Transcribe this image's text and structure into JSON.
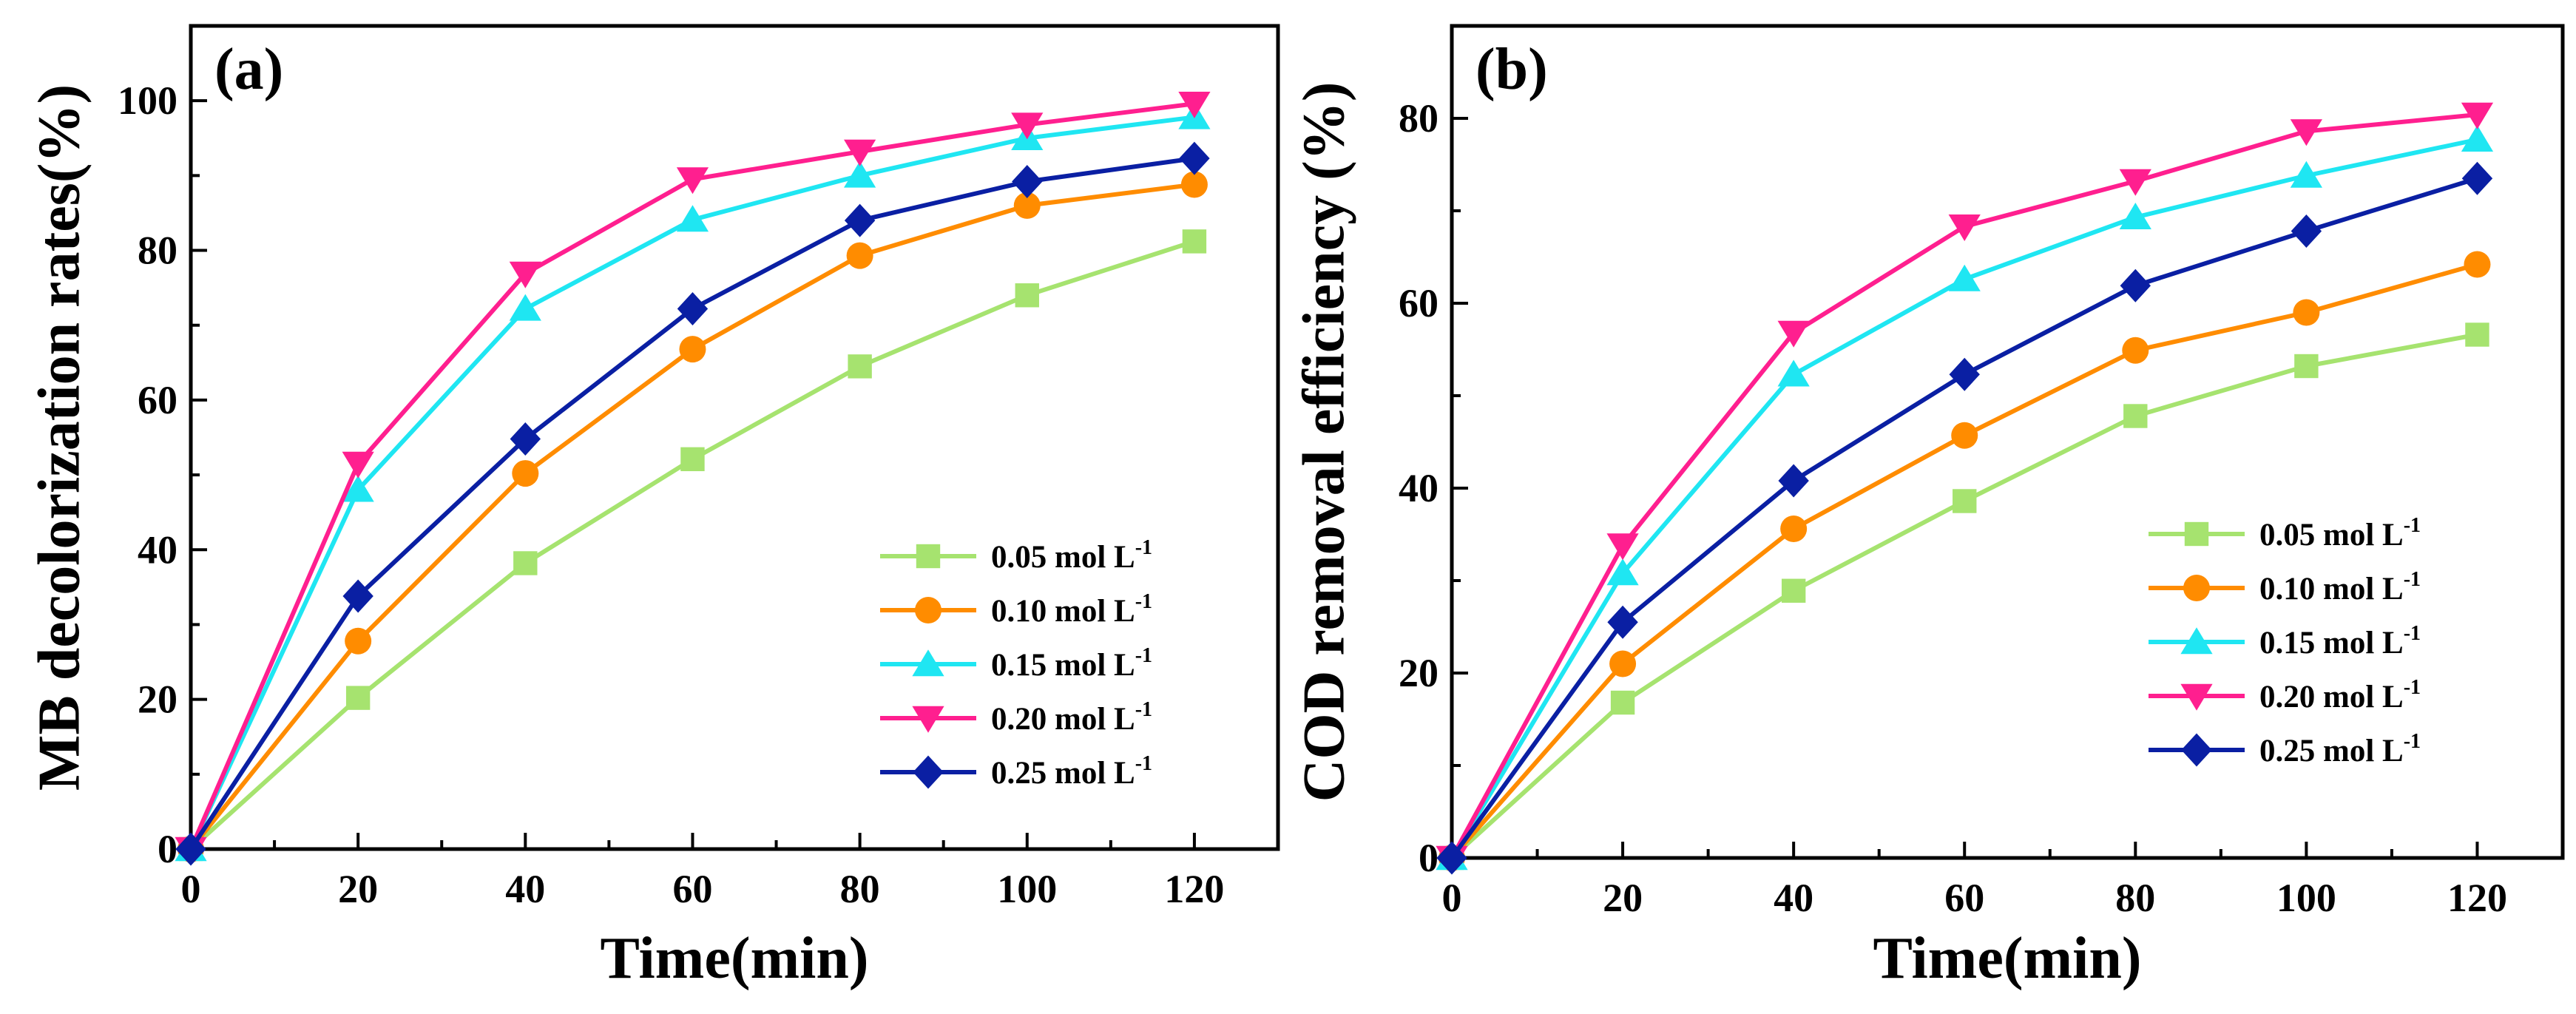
{
  "chart_data": [
    {
      "type": "line",
      "panel_label": "(a)",
      "xlabel": "Time(min)",
      "ylabel": "MB decolorization rates(%)",
      "xlim": [
        0,
        130
      ],
      "ylim": [
        0,
        110
      ],
      "x_ticks": [
        0,
        20,
        40,
        60,
        80,
        100,
        120
      ],
      "y_ticks": [
        0,
        20,
        40,
        60,
        80,
        100
      ],
      "x": [
        0,
        20,
        40,
        60,
        80,
        100,
        120
      ],
      "legend_position": "bottom-right",
      "series": [
        {
          "name": "0.05 mol L",
          "sup": "-1",
          "color": "#a6e36f",
          "marker": "square",
          "values": [
            0,
            20.2,
            38.2,
            52.1,
            64.5,
            74.0,
            81.2
          ]
        },
        {
          "name": "0.10 mol L",
          "sup": "-1",
          "color": "#ff8c00",
          "marker": "circle",
          "values": [
            0,
            27.8,
            50.2,
            66.8,
            79.3,
            86.0,
            88.8
          ]
        },
        {
          "name": "0.15 mol L",
          "sup": "-1",
          "color": "#1fe6f2",
          "marker": "triangle-up",
          "values": [
            0,
            48.0,
            72.2,
            84.1,
            90.0,
            95.0,
            97.8
          ]
        },
        {
          "name": "0.20 mol L",
          "sup": "-1",
          "color": "#ff1f8f",
          "marker": "triangle-down",
          "values": [
            0,
            51.5,
            76.9,
            89.5,
            93.2,
            96.8,
            99.6
          ]
        },
        {
          "name": "0.25 mol L",
          "sup": "-1",
          "color": "#0a1fa3",
          "marker": "diamond",
          "values": [
            0,
            33.8,
            54.8,
            72.2,
            84.0,
            89.2,
            92.3
          ]
        }
      ]
    },
    {
      "type": "line",
      "panel_label": "(b)",
      "xlabel": "Time(min)",
      "ylabel": "COD removal efficiency (%)",
      "xlim": [
        0,
        130
      ],
      "ylim": [
        0,
        90
      ],
      "x_ticks": [
        0,
        20,
        40,
        60,
        80,
        100,
        120
      ],
      "y_ticks": [
        0,
        20,
        40,
        60,
        80
      ],
      "x": [
        0,
        20,
        40,
        60,
        80,
        100,
        120
      ],
      "legend_position": "bottom-right",
      "series": [
        {
          "name": "0.05 mol L",
          "sup": "-1",
          "color": "#a6e36f",
          "marker": "square",
          "values": [
            0,
            16.8,
            28.9,
            38.6,
            47.8,
            53.2,
            56.6
          ]
        },
        {
          "name": "0.10 mol L",
          "sup": "-1",
          "color": "#ff8c00",
          "marker": "circle",
          "values": [
            0,
            21.0,
            35.6,
            45.7,
            54.9,
            59.0,
            64.2
          ]
        },
        {
          "name": "0.15 mol L",
          "sup": "-1",
          "color": "#1fe6f2",
          "marker": "triangle-up",
          "values": [
            0,
            30.8,
            52.3,
            62.6,
            69.3,
            73.8,
            77.7
          ]
        },
        {
          "name": "0.20 mol L",
          "sup": "-1",
          "color": "#ff1f8f",
          "marker": "triangle-down",
          "values": [
            0,
            33.8,
            56.8,
            68.3,
            73.2,
            78.6,
            80.4
          ]
        },
        {
          "name": "0.25 mol L",
          "sup": "-1",
          "color": "#0a1fa3",
          "marker": "diamond",
          "values": [
            0,
            25.5,
            40.8,
            52.3,
            61.9,
            67.8,
            73.5
          ]
        }
      ]
    }
  ]
}
